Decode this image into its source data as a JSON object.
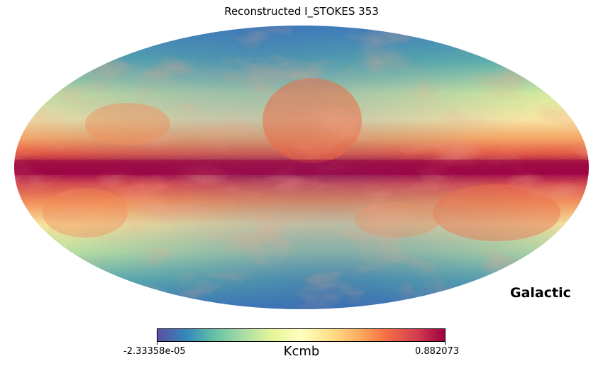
{
  "title": "Reconstructed I_STOKES 353",
  "coordinate_system": "Galactic",
  "projection": "mollweide",
  "colormap": "Spectral_r",
  "colorbar": {
    "min_label": "-2.33358e-05",
    "max_label": "0.882073",
    "unit": "Kcmb",
    "min_value": -2.33358e-05,
    "max_value": 0.882073,
    "stops": [
      "#5e4fa2",
      "#3288bd",
      "#66c2a5",
      "#abdda4",
      "#e6f598",
      "#ffffbf",
      "#fee08b",
      "#fdae61",
      "#f46d43",
      "#d53e4f",
      "#9e0142"
    ]
  },
  "background_color": "#ffffff"
}
